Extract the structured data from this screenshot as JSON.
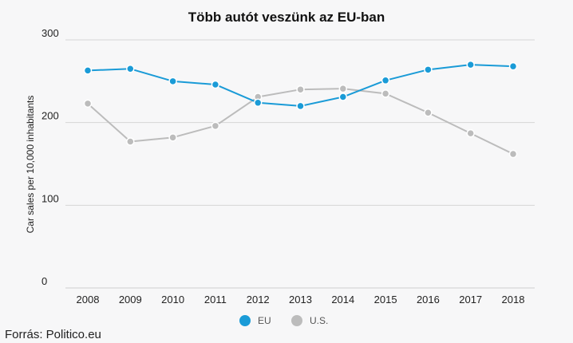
{
  "chart_data": {
    "type": "line",
    "title": "Több autót veszünk az EU-ban",
    "ylabel": "Car sales per 10,000 inhabitants",
    "xlabel": "",
    "x": [
      "2008",
      "2009",
      "2010",
      "2011",
      "2012",
      "2013",
      "2014",
      "2015",
      "2016",
      "2017",
      "2018"
    ],
    "ylim": [
      0,
      300
    ],
    "yticks": [
      "0",
      "100",
      "200",
      "300"
    ],
    "grid": true,
    "legend_position": "bottom-center",
    "series": [
      {
        "name": "EU",
        "color": "#1a9bd7",
        "values": [
          263,
          265,
          250,
          246,
          224,
          220,
          231,
          251,
          264,
          270,
          268
        ]
      },
      {
        "name": "U.S.",
        "color": "#bcbcbc",
        "values": [
          223,
          177,
          182,
          196,
          231,
          240,
          241,
          235,
          212,
          187,
          162
        ]
      }
    ]
  },
  "source": "Forrás: Politico.eu"
}
